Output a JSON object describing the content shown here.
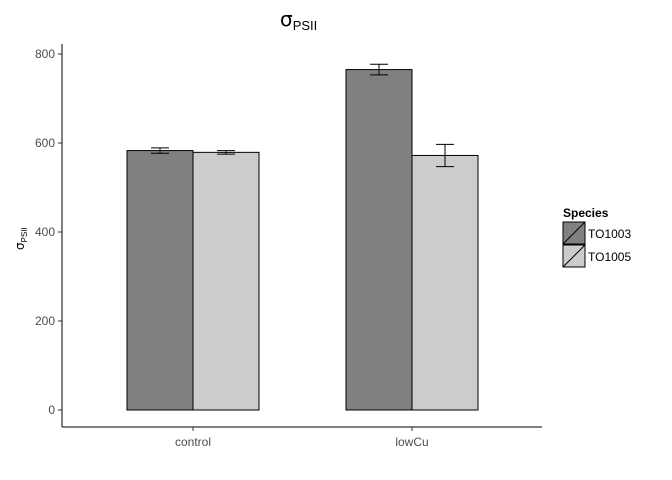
{
  "chart_data": {
    "type": "bar",
    "title_symbol": "σ",
    "title_subscript": "PSII",
    "ylabel_symbol": "σ",
    "ylabel_subscript": "PSII",
    "xlabel": "",
    "categories": [
      "control",
      "lowCu"
    ],
    "series": [
      {
        "name": "TO1003",
        "values": [
          583,
          765
        ],
        "error": [
          6,
          12
        ],
        "color": "#808080"
      },
      {
        "name": "TO1005",
        "values": [
          579,
          572
        ],
        "error": [
          4,
          25
        ],
        "color": "#cccccc"
      }
    ],
    "ylim": [
      -38,
      820
    ],
    "yticks": [
      0,
      200,
      400,
      600,
      800
    ],
    "grid": false,
    "legend": {
      "title": "Species",
      "position": "right"
    }
  }
}
